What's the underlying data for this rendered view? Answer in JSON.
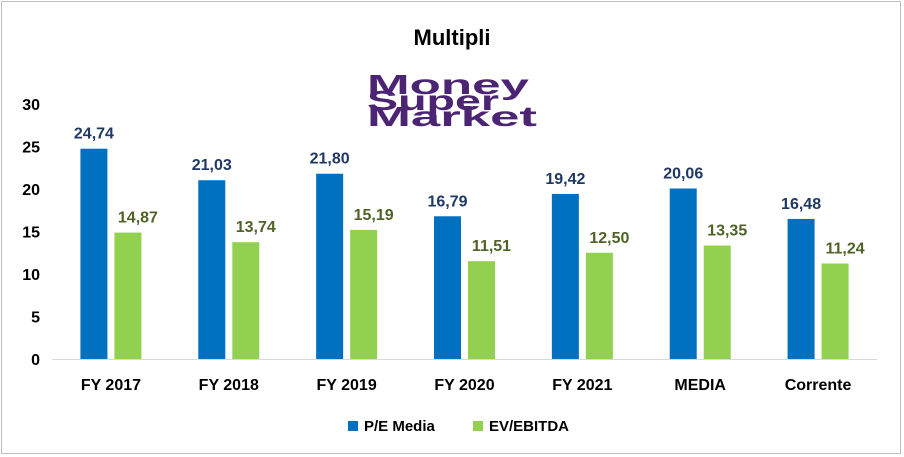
{
  "logo": {
    "lines": [
      "Money",
      "Super",
      "Market"
    ],
    "color": "#4b2473"
  },
  "chart_data": {
    "type": "bar",
    "title": "Multipli",
    "categories": [
      "FY 2017",
      "FY 2018",
      "FY 2019",
      "FY 2020",
      "FY 2021",
      "MEDIA",
      "Corrente"
    ],
    "series": [
      {
        "name": "P/E Media",
        "color": "#0070c0",
        "label_color": "#1f3864",
        "values": [
          24.74,
          21.03,
          21.8,
          16.79,
          19.42,
          20.06,
          16.48
        ],
        "labels": [
          "24,74",
          "21,03",
          "21,80",
          "16,79",
          "19,42",
          "20,06",
          "16,48"
        ]
      },
      {
        "name": "EV/EBITDA",
        "color": "#92d050",
        "label_color": "#4f6228",
        "values": [
          14.87,
          13.74,
          15.19,
          11.51,
          12.5,
          13.35,
          11.24
        ],
        "labels": [
          "14,87",
          "13,74",
          "15,19",
          "11,51",
          "12,50",
          "13,35",
          "11,24"
        ]
      }
    ],
    "yticks": [
      0,
      5,
      10,
      15,
      20,
      25,
      30
    ],
    "ylim": [
      0,
      30
    ],
    "grid": false,
    "legend": "bottom"
  }
}
